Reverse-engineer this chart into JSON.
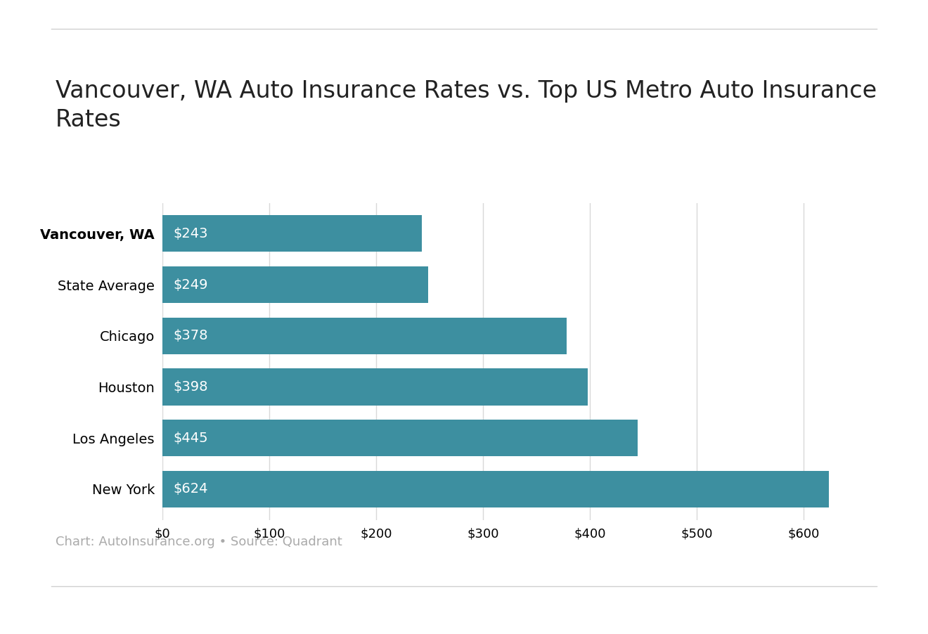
{
  "title": "Vancouver, WA Auto Insurance Rates vs. Top US Metro Auto Insurance\nRates",
  "categories": [
    "Vancouver, WA",
    "State Average",
    "Chicago",
    "Houston",
    "Los Angeles",
    "New York"
  ],
  "values": [
    243,
    249,
    378,
    398,
    445,
    624
  ],
  "bar_color": "#3d8fa0",
  "label_color": "#ffffff",
  "label_fontsize": 14,
  "title_fontsize": 24,
  "xlim": [
    0,
    660
  ],
  "xtick_values": [
    0,
    100,
    200,
    300,
    400,
    500,
    600
  ],
  "xtick_labels": [
    "$0",
    "$100",
    "$200",
    "$300",
    "$400",
    "$500",
    "$600"
  ],
  "background_color": "#ffffff",
  "grid_color": "#d8d8d8",
  "caption": "Chart: AutoInsurance.org • Source: Quadrant",
  "caption_fontsize": 13,
  "caption_color": "#aaaaaa",
  "line_color": "#d0d0d0"
}
